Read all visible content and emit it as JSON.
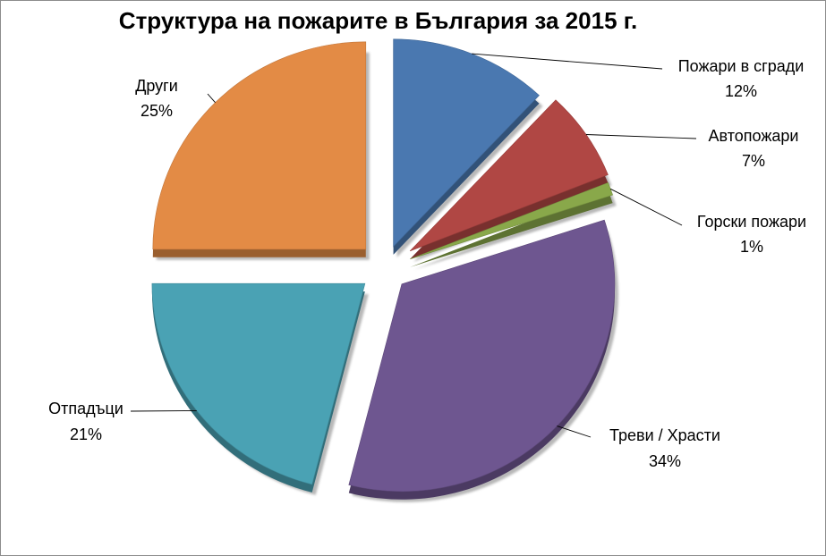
{
  "chart_data": {
    "type": "pie",
    "title": "Структура на пожарите в България за 2015 г.",
    "slices": [
      {
        "label": "Пожари в сгради",
        "value": 12,
        "pct_label": "12%",
        "color": "#4a78b0"
      },
      {
        "label": "Автопожари",
        "value": 7,
        "pct_label": "7%",
        "color": "#b04744"
      },
      {
        "label": "Горски пожари",
        "value": 1,
        "pct_label": "1%",
        "color": "#89a84a"
      },
      {
        "label": "Треви / Храсти",
        "value": 34,
        "pct_label": "34%",
        "color": "#6e5690"
      },
      {
        "label": "Отпадъци",
        "value": 21,
        "pct_label": "21%",
        "color": "#4aa2b4"
      },
      {
        "label": "Други",
        "value": 25,
        "pct_label": "25%",
        "color": "#e38b45"
      }
    ],
    "exploded": true,
    "three_d": true,
    "legend": "none"
  }
}
